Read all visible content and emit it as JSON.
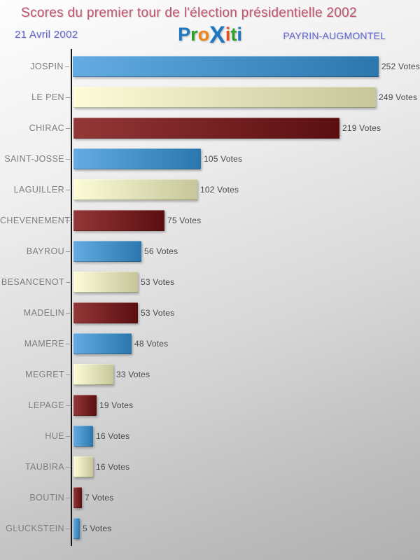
{
  "header": {
    "title": "Scores du premier tour de l'élection présidentielle 2002",
    "date": "21 Avril 2002",
    "location": "PAYRIN-AUGMONTEL",
    "logo": {
      "name": "Proxiti",
      "letters": [
        {
          "char": "P",
          "color": "#1d78c1",
          "big": false
        },
        {
          "char": "r",
          "color": "#34a02c",
          "big": false
        },
        {
          "char": "o",
          "color": "#f08519",
          "big": false
        },
        {
          "char": "X",
          "color": "#1d78c1",
          "big": true
        },
        {
          "char": "i",
          "color": "#e94f1d",
          "big": false
        },
        {
          "char": "t",
          "color": "#34a02c",
          "big": false
        },
        {
          "char": "i",
          "color": "#1d78c1",
          "big": false
        }
      ]
    }
  },
  "colors": {
    "title": "#c25470",
    "subtitle": "#5e63ce",
    "axis": "#161616",
    "category_label": "#7d7d7d",
    "value_label": "#4a4a4a",
    "bar_palette": [
      {
        "name": "blue",
        "from": "#64abe3",
        "to": "#2a77ae"
      },
      {
        "name": "cream",
        "from": "#fcfcd8",
        "to": "#c6c69a"
      },
      {
        "name": "dark-red",
        "from": "#943737",
        "to": "#5a0e10"
      }
    ]
  },
  "chart_data": {
    "type": "bar",
    "orientation": "horizontal",
    "title": "Scores du premier tour de l'élection présidentielle 2002",
    "subtitle_date": "21 Avril 2002",
    "subtitle_location": "PAYRIN-AUGMONTEL",
    "categories": [
      "JOSPIN",
      "LE PEN",
      "CHIRAC",
      "SAINT-JOSSE",
      "LAGUILLER",
      "CHEVENEMENT",
      "BAYROU",
      "BESANCENOT",
      "MADELIN",
      "MAMERE",
      "MEGRET",
      "LEPAGE",
      "HUE",
      "TAUBIRA",
      "BOUTIN",
      "GLUCKSTEIN"
    ],
    "values": [
      252,
      249,
      219,
      105,
      102,
      75,
      56,
      53,
      53,
      48,
      33,
      19,
      16,
      16,
      7,
      5
    ],
    "value_suffix": " Votes",
    "xlim": [
      0,
      252
    ],
    "grid": false,
    "legend": false,
    "bar_color_cycle": [
      "blue",
      "cream",
      "dark-red"
    ]
  }
}
